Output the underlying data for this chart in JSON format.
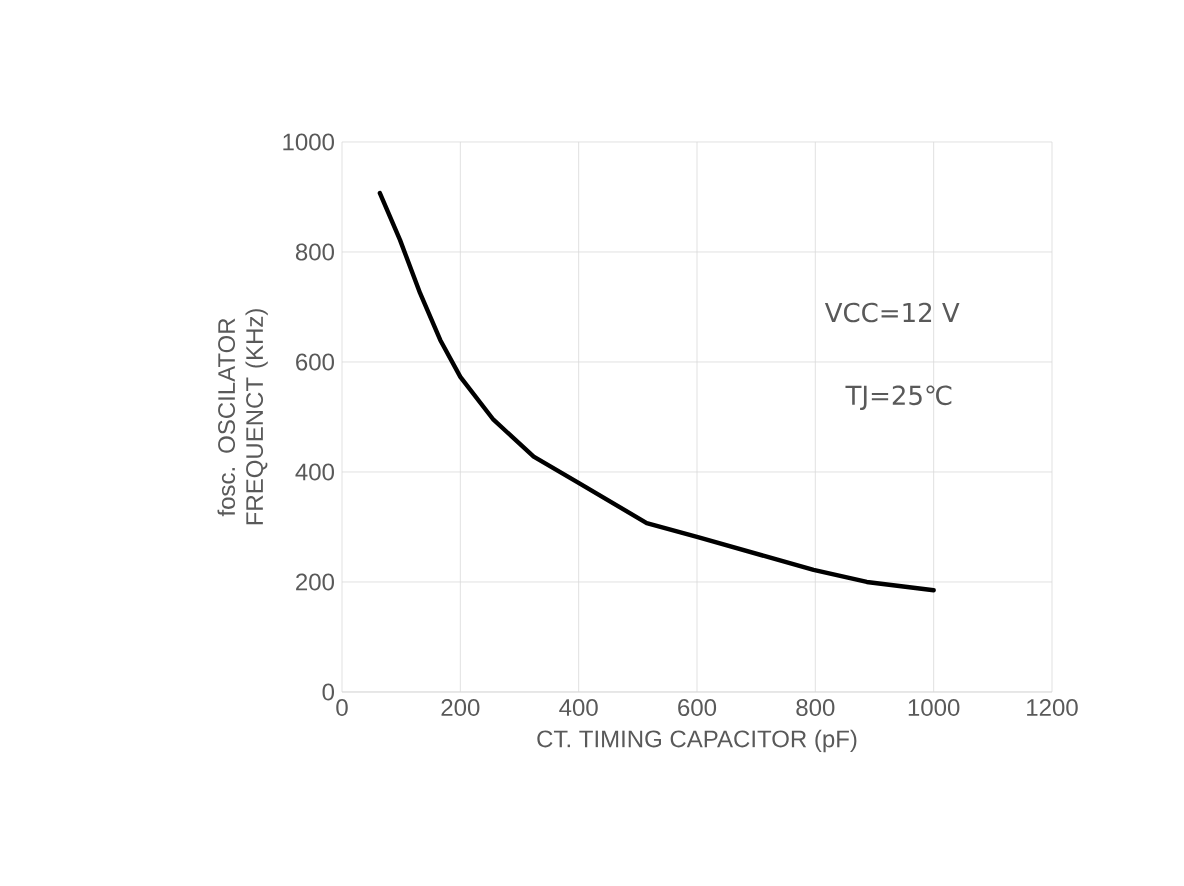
{
  "chart_data": {
    "type": "line",
    "xlabel": "CT. TIMING CAPACITOR (pF)",
    "ylabel": "fosc. OSCILATOR FREQUENCT (KHz)",
    "annotations": [
      "VCC=12 V",
      "TJ=25℃"
    ],
    "x": [
      64,
      98,
      132,
      166,
      200,
      256,
      324,
      402,
      515,
      600,
      718,
      797,
      887,
      1000
    ],
    "series": [
      {
        "color": "#000000",
        "values": [
          907,
          822,
          725,
          640,
          573,
          495,
          428,
          379,
          307,
          282,
          246,
          222,
          200,
          185
        ]
      }
    ],
    "xlim": [
      0,
      1200
    ],
    "xticks": [
      0,
      200,
      400,
      600,
      800,
      1000,
      1200
    ],
    "ylim": [
      0,
      1000
    ],
    "yticks": [
      0,
      200,
      400,
      600,
      800,
      1000
    ],
    "grid": true,
    "marker": "none",
    "line_style": "solid"
  }
}
